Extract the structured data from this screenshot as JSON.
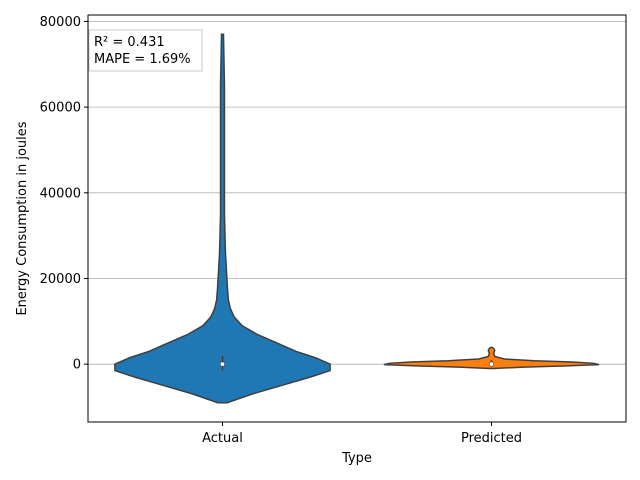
{
  "chart_data": {
    "type": "violin",
    "xlabel": "Type",
    "ylabel": "Energy Consumption in joules",
    "ylim": [
      -13500,
      81500
    ],
    "yticks": [
      0,
      20000,
      40000,
      60000,
      80000
    ],
    "grid": "y",
    "categories": [
      "Actual",
      "Predicted"
    ],
    "colors": [
      "#1f77b4",
      "#ff7f0e"
    ],
    "violins": [
      {
        "name": "Actual",
        "kde": [
          [
            -9000,
            0.005
          ],
          [
            -7000,
            0.03
          ],
          [
            -5000,
            0.06
          ],
          [
            -3000,
            0.09
          ],
          [
            -1500,
            0.11
          ],
          [
            0,
            0.11
          ],
          [
            1500,
            0.095
          ],
          [
            3000,
            0.075
          ],
          [
            5000,
            0.055
          ],
          [
            7000,
            0.035
          ],
          [
            9000,
            0.02
          ],
          [
            11000,
            0.012
          ],
          [
            13000,
            0.008
          ],
          [
            15000,
            0.006
          ],
          [
            18000,
            0.005
          ],
          [
            22000,
            0.004
          ],
          [
            26000,
            0.003
          ],
          [
            35000,
            0.002
          ],
          [
            50000,
            0.002
          ],
          [
            65000,
            0.002
          ],
          [
            77000,
            0.001
          ]
        ],
        "quartiles": [
          -200,
          0,
          200
        ],
        "median": 0,
        "whiskers": [
          -1500,
          2000
        ]
      },
      {
        "name": "Predicted",
        "kde": [
          [
            -1000,
            0.02
          ],
          [
            -700,
            0.3
          ],
          [
            -400,
            0.7
          ],
          [
            -100,
            1.0
          ],
          [
            200,
            0.95
          ],
          [
            500,
            0.75
          ],
          [
            800,
            0.4
          ],
          [
            1200,
            0.12
          ],
          [
            1800,
            0.03
          ],
          [
            2500,
            0.02
          ],
          [
            3200,
            0.03
          ],
          [
            3500,
            0.025
          ],
          [
            3900,
            0.01
          ]
        ],
        "quartiles": [
          -100,
          0,
          200
        ],
        "median": 0,
        "whiskers": [
          -600,
          1000
        ]
      }
    ],
    "annotation": [
      "R² = 0.431",
      "MAPE = 1.69%"
    ]
  }
}
